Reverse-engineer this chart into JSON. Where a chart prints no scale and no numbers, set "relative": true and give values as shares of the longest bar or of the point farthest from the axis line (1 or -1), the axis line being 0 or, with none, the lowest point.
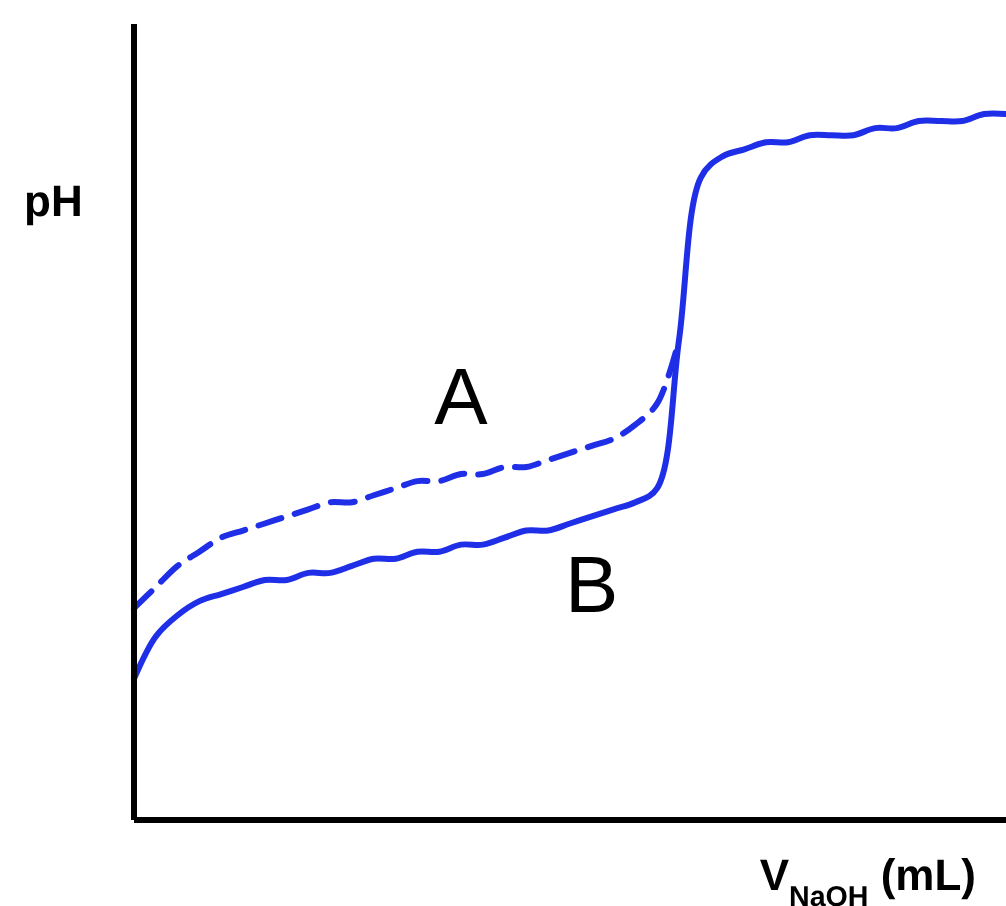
{
  "chart_data": {
    "type": "line",
    "relative": true,
    "xlabel": "V$_{NaOH}$ (mL)",
    "ylabel": "pH",
    "categories": [
      null,
      null,
      null,
      null,
      null,
      null,
      null,
      null,
      null,
      null,
      null,
      null,
      null,
      null,
      null,
      null,
      null,
      null,
      null,
      null,
      null,
      null,
      null,
      null,
      null,
      null,
      null,
      null,
      null,
      null,
      null,
      null,
      null,
      null,
      null,
      null,
      null,
      null,
      null,
      null,
      null
    ],
    "series": [
      {
        "name": "A",
        "color": "#1f2fe8",
        "line_style": "dashed",
        "values": [
          0.3,
          0.33,
          0.36,
          0.38,
          0.4,
          0.41,
          0.42,
          0.43,
          0.44,
          0.45,
          0.45,
          0.46,
          0.47,
          0.48,
          0.48,
          0.49,
          0.49,
          0.5,
          0.5,
          0.51,
          0.52,
          0.53,
          0.54,
          0.56,
          0.59,
          0.68,
          null,
          null,
          null,
          null,
          null,
          null,
          null,
          null,
          null,
          null,
          null,
          null,
          null,
          null,
          null
        ]
      },
      {
        "name": "B",
        "color": "#1f2fe8",
        "line_style": "solid",
        "values": [
          0.2,
          0.26,
          0.29,
          0.31,
          0.32,
          0.33,
          0.34,
          0.34,
          0.35,
          0.35,
          0.36,
          0.37,
          0.37,
          0.38,
          0.38,
          0.39,
          0.39,
          0.4,
          0.41,
          0.41,
          0.42,
          0.43,
          0.44,
          0.45,
          0.47,
          0.68,
          0.91,
          0.94,
          0.95,
          0.96,
          0.96,
          0.97,
          0.97,
          0.97,
          0.98,
          0.98,
          0.99,
          0.99,
          0.99,
          1.0,
          1.0
        ]
      }
    ],
    "marker": "none"
  }
}
